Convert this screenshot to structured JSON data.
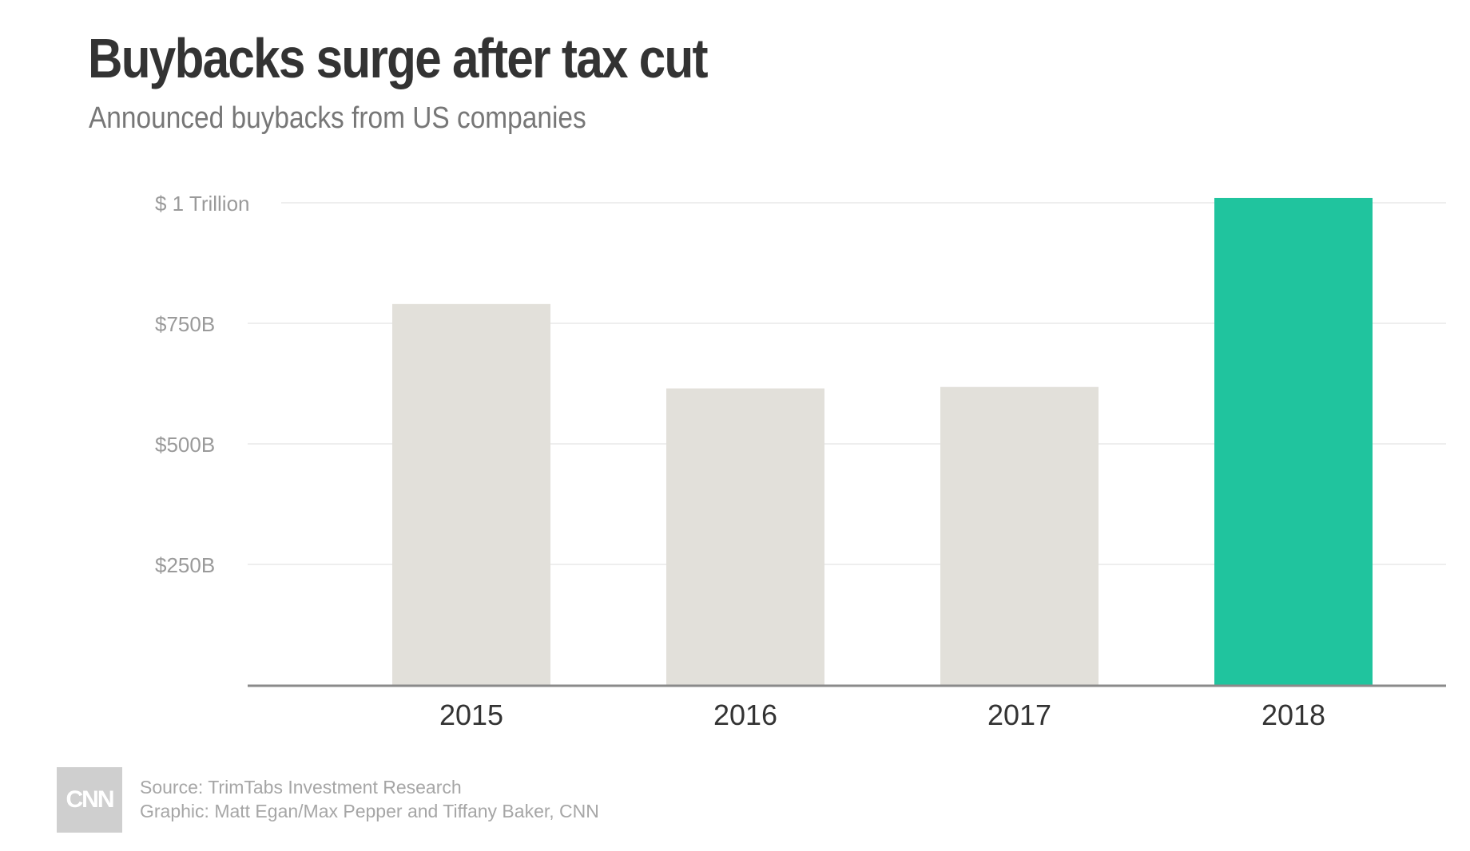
{
  "colors": {
    "bar_default": "#e2e0da",
    "bar_highlight": "#20c49e",
    "grid": "#e8e8e8",
    "axis": "#8a8a8a",
    "tick_label": "#9a9a9a",
    "category_label": "#333333",
    "title": "#333333",
    "subtitle": "#777777",
    "footer_text": "#a6a6a6",
    "logo_bg": "#cfcfcf"
  },
  "chart_data": {
    "type": "bar",
    "title": "Buybacks surge after tax cut",
    "subtitle": "Announced buybacks from US companies",
    "xlabel": "",
    "ylabel": "",
    "unit": "billions USD",
    "categories": [
      "2015",
      "2016",
      "2017",
      "2018"
    ],
    "values": [
      790,
      615,
      618,
      1010
    ],
    "highlight_index": 3,
    "ylim": [
      0,
      1000
    ],
    "yticks": [
      {
        "value": 250,
        "label": "$250B"
      },
      {
        "value": 500,
        "label": "$500B"
      },
      {
        "value": 750,
        "label": "$750B"
      },
      {
        "value": 1000,
        "label": "$ 1 Trillion"
      }
    ],
    "grid": true,
    "legend": "none"
  },
  "footer": {
    "logo": "CNN",
    "source": "Source: TrimTabs Investment Research",
    "credit": "Graphic: Matt Egan/Max Pepper and Tiffany Baker, CNN"
  }
}
